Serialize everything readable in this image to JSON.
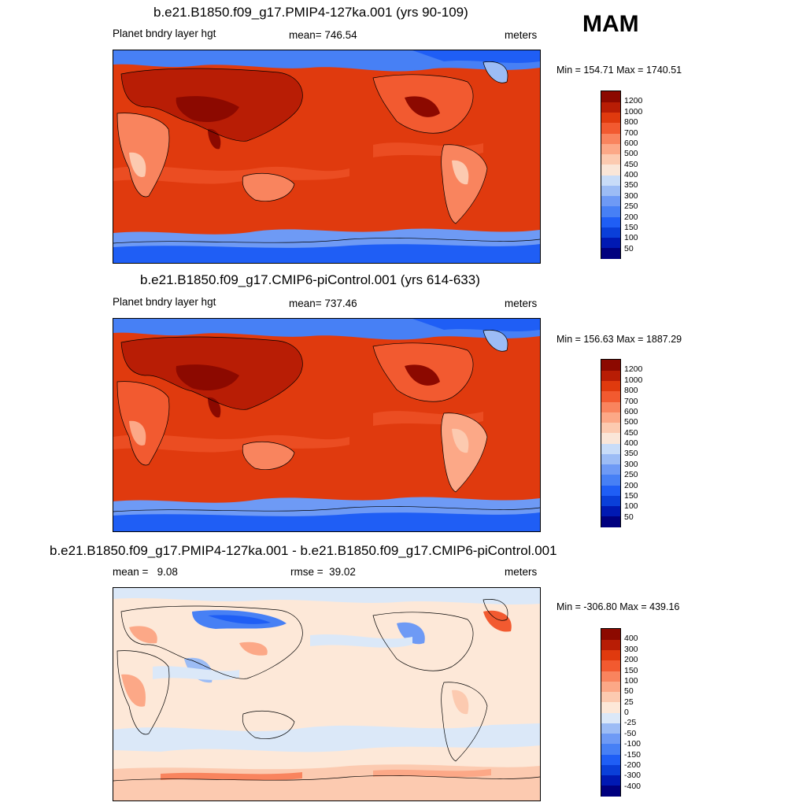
{
  "season": "MAM",
  "panels": [
    {
      "title": "b.e21.B1850.f09_g17.PMIP4-127ka.001 (yrs 90-109)",
      "left_label": "Planet bndry layer hgt",
      "center_label": "mean= 746.54",
      "right_label": "meters",
      "minmax": "Min = 154.71 Max = 1740.51"
    },
    {
      "title": "b.e21.B1850.f09_g17.CMIP6-piControl.001 (yrs 614-633)",
      "left_label": "Planet bndry layer hgt",
      "center_label": "mean= 737.46",
      "right_label": "meters",
      "minmax": "Min = 156.63 Max = 1887.29"
    },
    {
      "title": "b.e21.B1850.f09_g17.PMIP4-127ka.001 - b.e21.B1850.f09_g17.CMIP6-piControl.001",
      "left_label": "mean =   9.08",
      "center_label": "rmse =  39.02",
      "right_label": "meters",
      "minmax": "Min = -306.80 Max = 439.16"
    }
  ],
  "chart_data": [
    {
      "type": "heatmap",
      "title": "b.e21.B1850.f09_g17.PMIP4-127ka.001 (yrs 90-109)",
      "variable": "Planet bndry layer hgt",
      "units": "meters",
      "mean": 746.54,
      "min": 154.71,
      "max": 1740.51,
      "colorbar_levels": [
        "50",
        "100",
        "150",
        "200",
        "250",
        "300",
        "350",
        "400",
        "450",
        "500",
        "600",
        "700",
        "800",
        "1000",
        "1200"
      ],
      "colorbar_colors": [
        "#00007f",
        "#0019b3",
        "#0a3fd9",
        "#1f5ef5",
        "#4780f5",
        "#6e9af5",
        "#9cbcf5",
        "#c8dcf8",
        "#fae6d8",
        "#fccab0",
        "#fca887",
        "#f9845e",
        "#f25a30",
        "#e03a0e",
        "#b81d05",
        "#8c0900"
      ]
    },
    {
      "type": "heatmap",
      "title": "b.e21.B1850.f09_g17.CMIP6-piControl.001 (yrs 614-633)",
      "variable": "Planet bndry layer hgt",
      "units": "meters",
      "mean": 737.46,
      "min": 156.63,
      "max": 1887.29,
      "colorbar_levels": [
        "50",
        "100",
        "150",
        "200",
        "250",
        "300",
        "350",
        "400",
        "450",
        "500",
        "600",
        "700",
        "800",
        "1000",
        "1200"
      ],
      "colorbar_colors": [
        "#00007f",
        "#0019b3",
        "#0a3fd9",
        "#1f5ef5",
        "#4780f5",
        "#6e9af5",
        "#9cbcf5",
        "#c8dcf8",
        "#fae6d8",
        "#fccab0",
        "#fca887",
        "#f9845e",
        "#f25a30",
        "#e03a0e",
        "#b81d05",
        "#8c0900"
      ]
    },
    {
      "type": "heatmap",
      "title": "b.e21.B1850.f09_g17.PMIP4-127ka.001 - b.e21.B1850.f09_g17.CMIP6-piControl.001",
      "units": "meters",
      "mean": 9.08,
      "rmse": 39.02,
      "min": -306.8,
      "max": 439.16,
      "colorbar_levels": [
        "-400",
        "-300",
        "-200",
        "-150",
        "-100",
        "-50",
        "-25",
        "0",
        "25",
        "50",
        "100",
        "150",
        "200",
        "300",
        "400"
      ],
      "colorbar_colors": [
        "#00007f",
        "#0019b3",
        "#0a3fd9",
        "#1f5ef5",
        "#4780f5",
        "#6e9af5",
        "#9cbcf5",
        "#dbe8f8",
        "#fde8d8",
        "#fccab0",
        "#fca887",
        "#f9845e",
        "#f25a30",
        "#e03a0e",
        "#b81d05",
        "#8c0900"
      ]
    }
  ],
  "colors": {
    "ocean_dominant_abs": "#e03a0e",
    "polar_low_abs": "#4780f5",
    "land_high_abs": "#b81d05",
    "diff_background": "#fde8d8",
    "diff_negative": "#dbe8f8",
    "coastline": "#000000"
  }
}
